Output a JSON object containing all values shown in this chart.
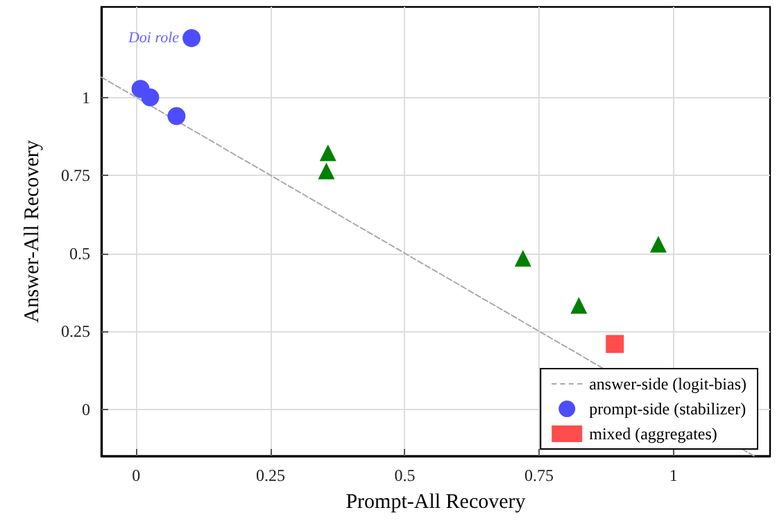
{
  "chart_data": {
    "type": "scatter",
    "xlabel": "Prompt-All Recovery",
    "ylabel": "Answer-All Recovery",
    "xlim": [
      -0.065,
      1.18
    ],
    "ylim": [
      -0.15,
      1.29
    ],
    "xticks": [
      0,
      0.25,
      0.5,
      0.75,
      1
    ],
    "yticks": [
      0,
      0.25,
      0.5,
      0.75,
      1
    ],
    "grid": true,
    "legend": "bottom right",
    "series": [
      {
        "name": "answer-side (logit-bias)",
        "type": "line",
        "color": "#aaaaaa",
        "line_style": "dashed",
        "marker": "none",
        "x": [
          -0.065,
          1.15
        ],
        "values": [
          1.065,
          -0.15
        ]
      },
      {
        "name": "prompt-side (stabilizer)",
        "color": "#4d4dff",
        "marker": "circle",
        "x": [
          0.008,
          0.026,
          0.075,
          0.103
        ],
        "values": [
          1.027,
          1.0,
          0.94,
          1.19
        ]
      },
      {
        "color": "#008000",
        "marker": "triangle",
        "x": [
          0.357,
          0.354,
          0.72,
          0.824,
          0.972
        ],
        "values": [
          0.822,
          0.764,
          0.484,
          0.333,
          0.529
        ]
      },
      {
        "name": "mixed (aggregates)",
        "color": "#ff4d4d",
        "marker": "square",
        "x": [
          0.891
        ],
        "values": [
          0.209
        ]
      }
    ],
    "annotations": [
      {
        "text": "Doi role",
        "x": 0.103,
        "y": 1.19
      }
    ]
  }
}
